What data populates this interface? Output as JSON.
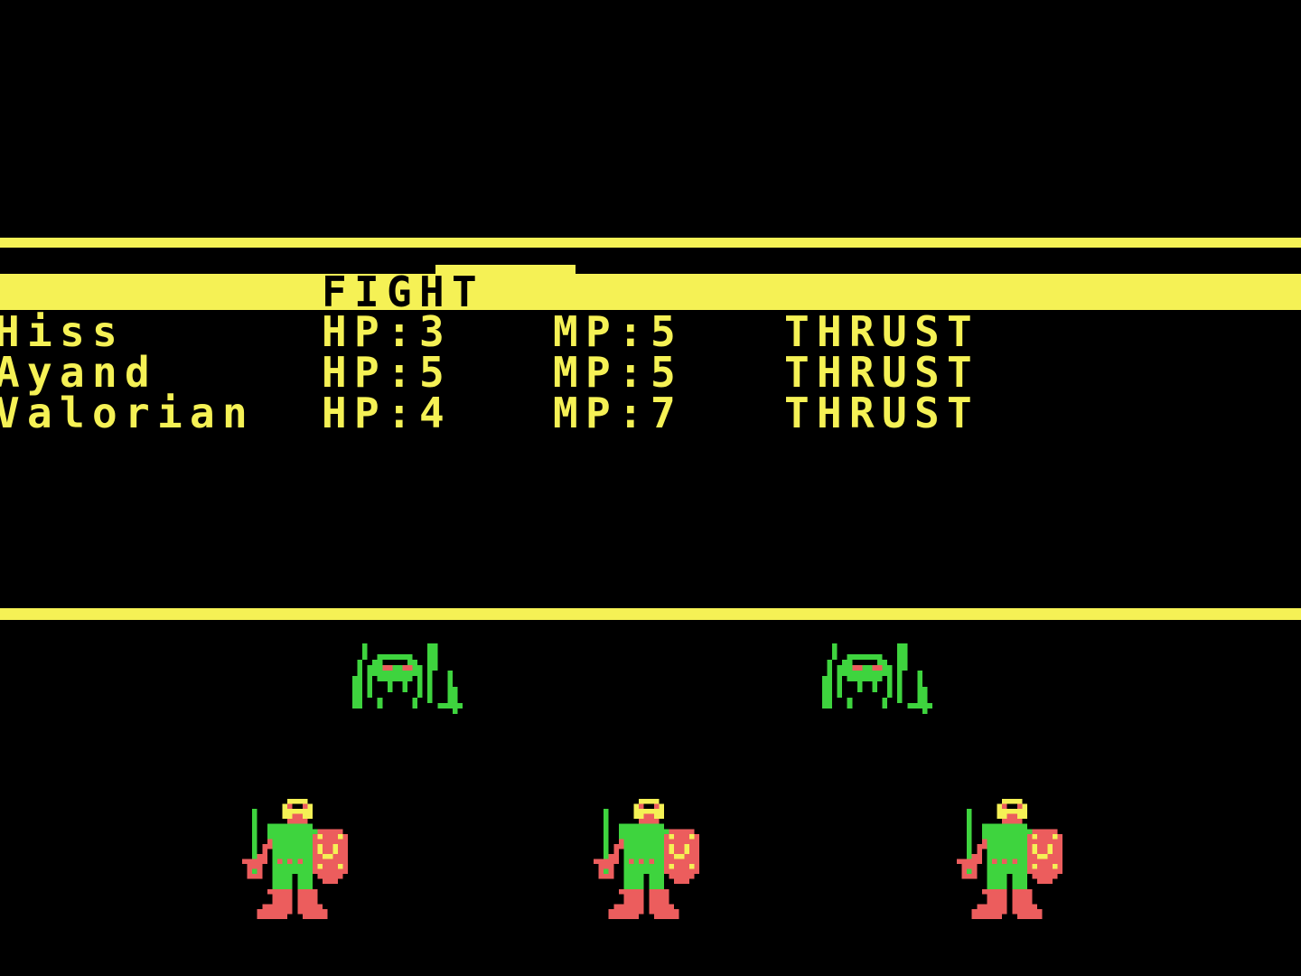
{
  "palette": {
    "background": "#000000",
    "yellow": "#f5f155",
    "green": "#3ed43e",
    "red": "#ec5d5d",
    "text_black": "#000000"
  },
  "menu": {
    "selected_command": "FIGHT"
  },
  "party": [
    {
      "name": "Hiss",
      "hp": "HP:3",
      "mp": "MP:5",
      "action": "THRUST"
    },
    {
      "name": "Ayand",
      "hp": "HP:5",
      "mp": "MP:5",
      "action": "THRUST"
    },
    {
      "name": "Valorian",
      "hp": "HP:4",
      "mp": "MP:7",
      "action": "THRUST"
    }
  ],
  "battle": {
    "enemy_sprite_count": 2,
    "party_sprite_count": 3
  },
  "sprites": {
    "spider": {
      "legend": {
        "G": "green",
        "R": "red"
      },
      "pixels": [
        "..G............GG.....",
        "..G............GG.....",
        "..G..GGGGGGG...GG.....",
        ".G..GG.....GG..GG.....",
        ".G.GGGRRGGRRGG.GG.....",
        ".G.GGGGGGGGGGG.G...G..",
        "GG.G.GGGGGGG.G.G...G..",
        "GG.G...G..G..G.G...G..",
        "GG.G...G..G..G.G...GG.",
        "GG.G.........G.G...GG.",
        "GG...G......G..G...GG.",
        "GG...G......G....GGGGG",
        "....................G."
      ]
    },
    "knight": {
      "legend": {
        "G": "green",
        "R": "red",
        "Y": "yellow"
      },
      "pixels": [
        ".........YYYY........",
        "........YR..RY.......",
        "..G.....YYYYYY.......",
        "..G.....YYRRYY.......",
        "..G......RRRR........",
        "..G..GGGGGGGGG.......",
        "..G..GGGGGGGGGGRRRRR.",
        "..G..GGGGGGGGGRYRRRYR",
        "..G..RGGGGGGGGRRRRRRR",
        "..G.RRGGGGGGGGRYRRYRR",
        "..G.R.GGGGGGGGRYRRYRR",
        "..GRR.GGGGGGGGRRYYRRR",
        "RRRRR.GRGRGRGGRRRRRRR",
        ".RRR..GGGGGGGGRYRRRYR",
        ".RGR..GGGGGGGGRRRRRRR",
        ".RRR..GGGG.GGG.RRRRR.",
        "......GGGG.GGG..RRR..",
        "......GGGG.GGG.......",
        ".....RRRRR.RRRR......",
        "......RRRR.RRRR......",
        "......RRRR.RRRR......",
        "....RRRRRR.RRRRR.....",
        "...RRRRRRR.RRRRRR....",
        "...RRRRRR...RRRRR...."
      ]
    }
  }
}
